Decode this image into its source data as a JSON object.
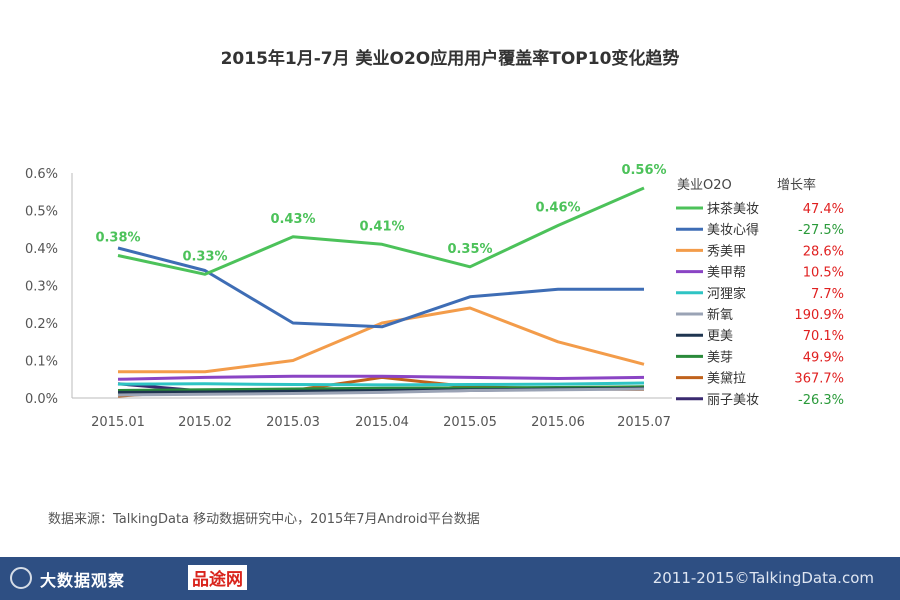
{
  "title": "2015年1月-7月 美业O2O应用用户覆盖率TOP10变化趋势",
  "source": "数据来源：TalkingData 移动数据研究中心，2015年7月Android平台数据",
  "footer": {
    "logo_text": "大数据观察",
    "brand2": "品途网",
    "copyright": "2011-2015©TalkingData.com",
    "bg_color": "#2e4f83"
  },
  "chart_data": {
    "type": "line",
    "title": "2015年1月-7月 美业O2O应用用户覆盖率TOP10变化趋势",
    "x": [
      "2015.01",
      "2015.02",
      "2015.03",
      "2015.04",
      "2015.05",
      "2015.06",
      "2015.07"
    ],
    "ylim": [
      0,
      0.6
    ],
    "yticks": [
      "0.0%",
      "0.1%",
      "0.2%",
      "0.3%",
      "0.4%",
      "0.5%",
      "0.6%"
    ],
    "ytick_values": [
      0,
      0.1,
      0.2,
      0.3,
      0.4,
      0.5,
      0.6
    ],
    "legend_header": "美业O2O",
    "growth_header": "增长率",
    "series": [
      {
        "name": "抹茶美妆",
        "color": "#4cc25a",
        "growth": "47.4%",
        "growth_color": "#e02020",
        "values": [
          0.38,
          0.33,
          0.43,
          0.41,
          0.35,
          0.46,
          0.56
        ],
        "labels": [
          "0.38%",
          "0.33%",
          "0.43%",
          "0.41%",
          "0.35%",
          "0.46%",
          "0.56%"
        ]
      },
      {
        "name": "美妆心得",
        "color": "#3e6db5",
        "growth": "-27.5%",
        "growth_color": "#2a9a3a",
        "values": [
          0.4,
          0.34,
          0.2,
          0.19,
          0.27,
          0.29,
          0.29
        ]
      },
      {
        "name": "秀美甲",
        "color": "#f39c4a",
        "growth": "28.6%",
        "growth_color": "#e02020",
        "values": [
          0.07,
          0.07,
          0.1,
          0.2,
          0.24,
          0.15,
          0.09
        ]
      },
      {
        "name": "美甲帮",
        "color": "#8a44c4",
        "growth": "10.5%",
        "growth_color": "#e02020",
        "values": [
          0.05,
          0.055,
          0.058,
          0.058,
          0.055,
          0.052,
          0.055
        ]
      },
      {
        "name": "河狸家",
        "color": "#2ec4c4",
        "growth": "7.7%",
        "growth_color": "#e02020",
        "values": [
          0.037,
          0.038,
          0.036,
          0.035,
          0.036,
          0.037,
          0.04
        ]
      },
      {
        "name": "新氧",
        "color": "#9aa3b5",
        "growth": "190.9%",
        "growth_color": "#e02020",
        "values": [
          0.008,
          0.01,
          0.012,
          0.015,
          0.02,
          0.022,
          0.024
        ]
      },
      {
        "name": "更美",
        "color": "#1f3550",
        "growth": "70.1%",
        "growth_color": "#e02020",
        "values": [
          0.015,
          0.016,
          0.018,
          0.02,
          0.022,
          0.024,
          0.026
        ]
      },
      {
        "name": "美芽",
        "color": "#2a8a3a",
        "growth": "49.9%",
        "growth_color": "#e02020",
        "values": [
          0.02,
          0.022,
          0.024,
          0.026,
          0.027,
          0.028,
          0.03
        ]
      },
      {
        "name": "美黛拉",
        "color": "#c0621c",
        "growth": "367.7%",
        "growth_color": "#e02020",
        "values": [
          0.005,
          0.02,
          0.02,
          0.055,
          0.03,
          0.025,
          0.023
        ]
      },
      {
        "name": "丽子美妆",
        "color": "#3a2a70",
        "growth": "-26.3%",
        "growth_color": "#2a9a3a",
        "values": [
          0.038,
          0.018,
          0.017,
          0.017,
          0.02,
          0.024,
          0.028
        ]
      }
    ]
  }
}
